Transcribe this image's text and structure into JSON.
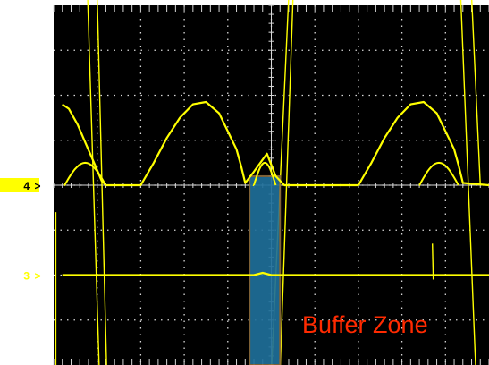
{
  "scope": {
    "background": "#000000",
    "grid_color": "#d8d8d8",
    "trace_color": "#ffff00",
    "buffer_zone_fill": "#1f6f9a",
    "buffer_zone_edge": "#8a6a3a",
    "annotation_color": "#ff2a00",
    "channel4_marker_fill": "#ffff00",
    "annotation_text": "Buffer Zone"
  },
  "chart_data": {
    "type": "line",
    "grid": true,
    "divisions": {
      "x": 10,
      "y": 8
    },
    "xlim": [
      0,
      10
    ],
    "ylim": [
      -4,
      4
    ],
    "markers": [
      {
        "label": "4",
        "ref_y": 0.0
      },
      {
        "label": "3",
        "ref_y": -2.0
      }
    ],
    "buffer_zone": {
      "x_start": 4.5,
      "x_end": 5.2,
      "y_top": 0.2,
      "y_bottom": -4.0
    },
    "series": [
      {
        "channel": "4",
        "x": [
          0.2,
          0.35,
          0.55,
          0.75,
          0.95,
          1.1,
          1.2,
          1.3,
          2.0,
          2.3,
          2.6,
          2.9,
          3.2,
          3.5,
          3.8,
          4.0,
          4.2,
          4.3,
          4.4,
          4.6,
          4.9,
          5.1,
          5.3,
          5.5,
          6.0,
          6.5,
          7.0,
          7.3,
          7.6,
          7.9,
          8.2,
          8.5,
          8.8,
          9.0,
          9.2,
          9.3,
          9.4,
          10.0
        ],
        "y": [
          1.8,
          1.7,
          1.35,
          0.9,
          0.45,
          0.1,
          0.0,
          0.0,
          0.0,
          0.5,
          1.05,
          1.5,
          1.8,
          1.85,
          1.6,
          1.2,
          0.8,
          0.45,
          0.05,
          0.3,
          0.7,
          0.2,
          0.0,
          0.0,
          0.0,
          0.0,
          0.0,
          0.5,
          1.05,
          1.5,
          1.8,
          1.85,
          1.6,
          1.2,
          0.8,
          0.45,
          0.05,
          0.0
        ]
      },
      {
        "channel": "3",
        "x": [
          0.2,
          1.0,
          2.0,
          3.0,
          4.0,
          4.6,
          4.8,
          5.0,
          5.2,
          6.0,
          7.0,
          8.0,
          9.0,
          10.0
        ],
        "y": [
          -2.0,
          -2.0,
          -2.0,
          -2.0,
          -2.0,
          -2.0,
          -1.95,
          -2.0,
          -2.0,
          -2.0,
          -2.0,
          -2.0,
          -2.0,
          -2.0
        ]
      }
    ]
  }
}
